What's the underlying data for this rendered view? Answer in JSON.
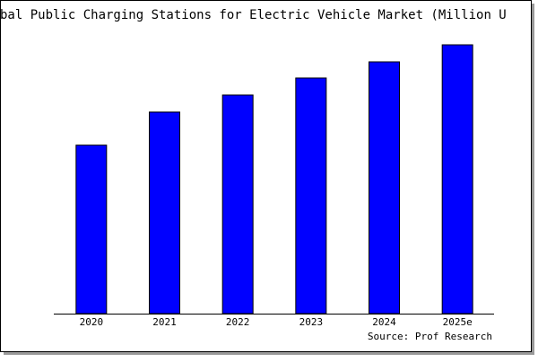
{
  "chart_data": {
    "type": "bar",
    "title": "bal Public Charging Stations for Electric Vehicle Market (Million U",
    "source": "Source: Prof Research",
    "categories": [
      "2020",
      "2021",
      "2022",
      "2023",
      "2024",
      "2025e"
    ],
    "values": [
      188,
      225,
      244,
      263,
      281,
      300
    ],
    "color": "#0000ff",
    "ylim": [
      0,
      302
    ]
  }
}
